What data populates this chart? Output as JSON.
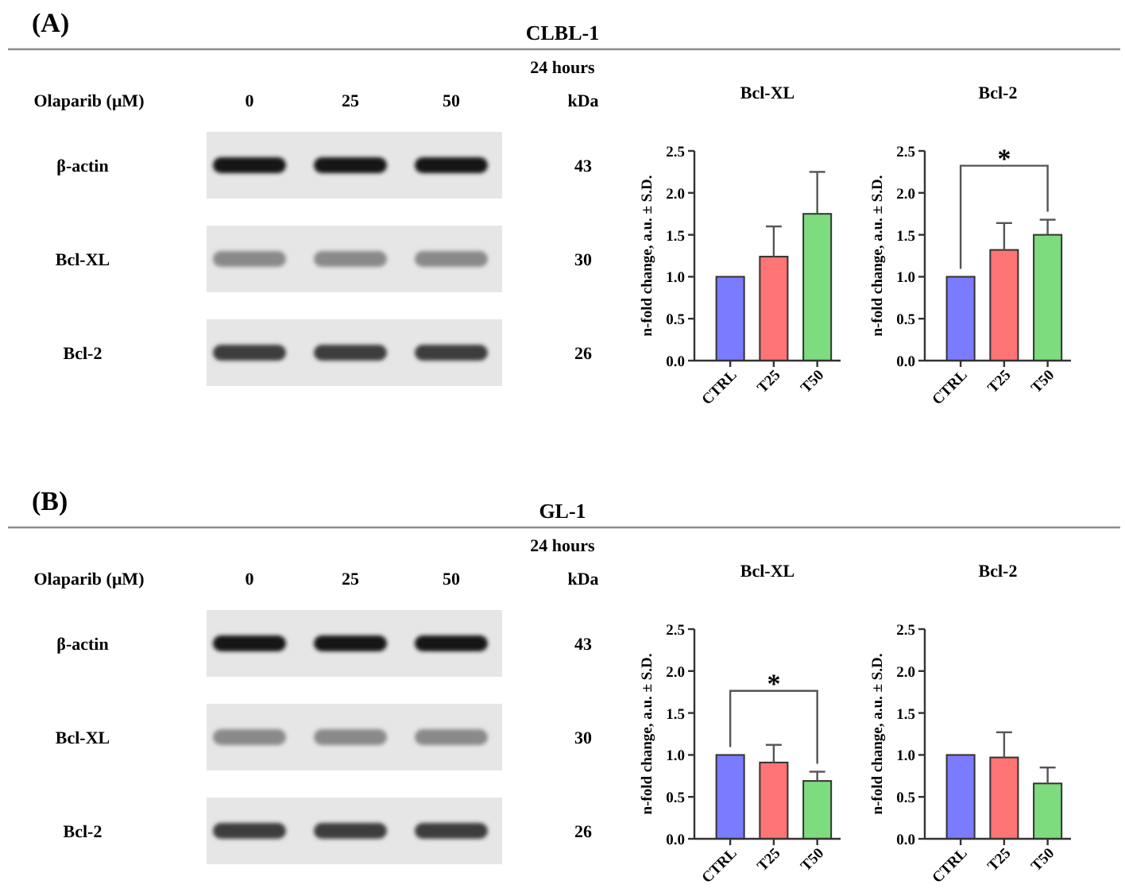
{
  "chart_data": [
    {
      "type": "other",
      "title": "CLBL-1",
      "subtitle": "24 hours",
      "xlabel": "Olaparib (μM)",
      "categories": [
        "0",
        "25",
        "50"
      ],
      "y_categories": [
        "β-actin",
        "Bcl-XL",
        "Bcl-2"
      ],
      "y2label": "kDa",
      "y2_categories": [
        "43",
        "30",
        "26"
      ],
      "annotations": [
        "(A)"
      ]
    },
    {
      "type": "bar",
      "title": "Bcl-XL",
      "ylabel": "n-fold change, a.u. ± S.D.",
      "categories": [
        "CTRL",
        "T25",
        "T50"
      ],
      "values": [
        1.0,
        1.24,
        1.75
      ],
      "colors": [
        "#7b7bff",
        "#ff7474",
        "#7ddc7d"
      ],
      "errors": [
        null,
        [
          1.24,
          1.6
        ],
        [
          1.75,
          2.25
        ]
      ],
      "ylim": [
        0,
        2.5
      ],
      "yticks": [
        {
          "value": 0,
          "label": "0.0"
        },
        {
          "value": 0.5,
          "label": "0.5"
        },
        {
          "value": 1,
          "label": "1.0"
        },
        {
          "value": 1.5,
          "label": "1.5"
        },
        {
          "value": 2,
          "label": "2.0"
        },
        {
          "value": 2.5,
          "label": "2.5"
        }
      ]
    },
    {
      "type": "bar",
      "title": "Bcl-2",
      "ylabel": "n-fold change, a.u. ± S.D.",
      "categories": [
        "CTRL",
        "T25",
        "T50"
      ],
      "values": [
        1.0,
        1.32,
        1.5
      ],
      "colors": [
        "#7b7bff",
        "#ff7474",
        "#7ddc7d"
      ],
      "errors": [
        null,
        [
          1.32,
          1.64
        ],
        [
          1.5,
          1.68
        ]
      ],
      "ylim": [
        0,
        2.5
      ],
      "yticks": [
        {
          "value": 0,
          "label": "0.0"
        },
        {
          "value": 0.5,
          "label": "0.5"
        },
        {
          "value": 1,
          "label": "1.0"
        },
        {
          "value": 1.5,
          "label": "1.5"
        },
        {
          "value": 2,
          "label": "2.0"
        },
        {
          "value": 2.5,
          "label": "2.5"
        }
      ],
      "annotations": [
        "*"
      ]
    },
    {
      "type": "other",
      "title": "GL-1",
      "subtitle": "24 hours",
      "xlabel": "Olaparib (μM)",
      "categories": [
        "0",
        "25",
        "50"
      ],
      "y_categories": [
        "β-actin",
        "Bcl-XL",
        "Bcl-2"
      ],
      "y2label": "kDa",
      "y2_categories": [
        "43",
        "30",
        "26"
      ],
      "annotations": [
        "(B)"
      ]
    },
    {
      "type": "bar",
      "title": "Bcl-XL",
      "ylabel": "n-fold change, a.u. ± S.D.",
      "categories": [
        "CTRL",
        "T25",
        "T50"
      ],
      "values": [
        1.0,
        0.91,
        0.69
      ],
      "colors": [
        "#7b7bff",
        "#ff7474",
        "#7ddc7d"
      ],
      "errors": [
        null,
        [
          0.91,
          1.12
        ],
        [
          0.69,
          0.8
        ]
      ],
      "ylim": [
        0,
        2.5
      ],
      "yticks": [
        {
          "value": 0,
          "label": "0.0"
        },
        {
          "value": 0.5,
          "label": "0.5"
        },
        {
          "value": 1,
          "label": "1.0"
        },
        {
          "value": 1.5,
          "label": "1.5"
        },
        {
          "value": 2,
          "label": "2.0"
        },
        {
          "value": 2.5,
          "label": "2.5"
        }
      ],
      "annotations": [
        "*"
      ]
    },
    {
      "type": "bar",
      "title": "Bcl-2",
      "ylabel": "n-fold change, a.u. ± S.D.",
      "categories": [
        "CTRL",
        "T25",
        "T50"
      ],
      "values": [
        1.0,
        0.97,
        0.66
      ],
      "colors": [
        "#7b7bff",
        "#ff7474",
        "#7ddc7d"
      ],
      "errors": [
        null,
        [
          0.97,
          1.27
        ],
        [
          0.66,
          0.85
        ]
      ],
      "ylim": [
        0,
        2.5
      ],
      "yticks": [
        {
          "value": 0,
          "label": "0.0"
        },
        {
          "value": 0.5,
          "label": "0.5"
        },
        {
          "value": 1,
          "label": "1.0"
        },
        {
          "value": 1.5,
          "label": "1.5"
        },
        {
          "value": 2,
          "label": "2.0"
        },
        {
          "value": 2.5,
          "label": "2.5"
        }
      ]
    }
  ]
}
